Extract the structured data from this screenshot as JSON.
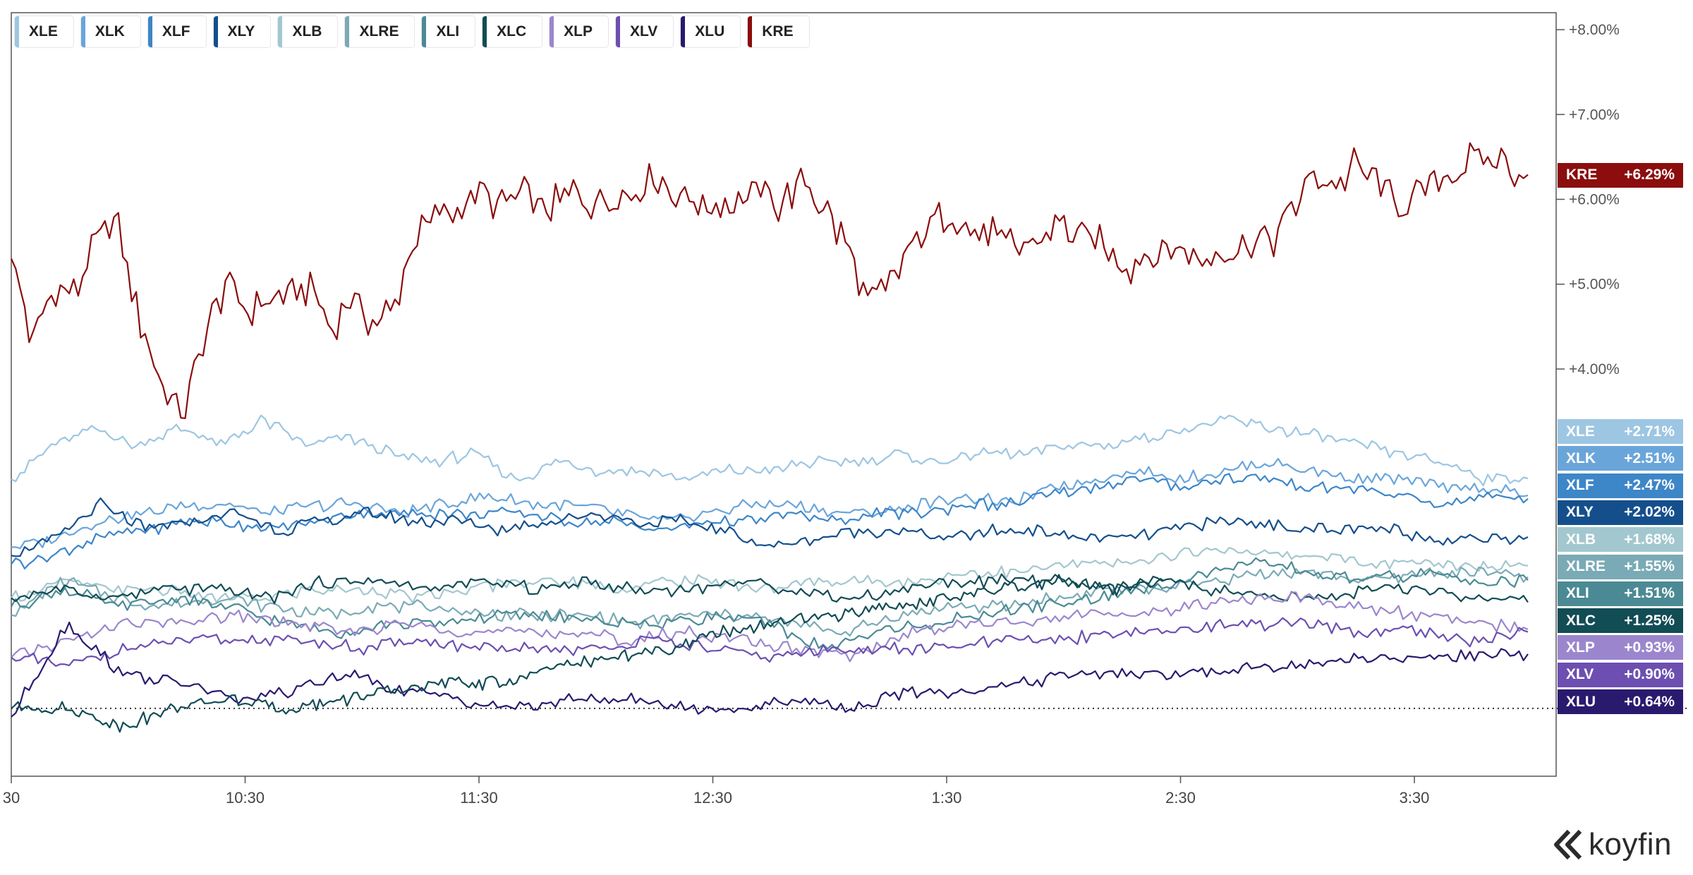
{
  "legend": [
    {
      "name": "XLE",
      "color": "#9dc6e3"
    },
    {
      "name": "XLK",
      "color": "#6aa5da"
    },
    {
      "name": "XLF",
      "color": "#3d86c8"
    },
    {
      "name": "XLY",
      "color": "#144f8c"
    },
    {
      "name": "XLB",
      "color": "#a3c7cf"
    },
    {
      "name": "XLRE",
      "color": "#7aaab5"
    },
    {
      "name": "XLI",
      "color": "#4b8a94"
    },
    {
      "name": "XLC",
      "color": "#124c55"
    },
    {
      "name": "XLP",
      "color": "#9b86ce"
    },
    {
      "name": "XLV",
      "color": "#6c4fb0"
    },
    {
      "name": "XLU",
      "color": "#2a1a6e"
    },
    {
      "name": "KRE",
      "color": "#8b0d0d"
    }
  ],
  "chart_data": {
    "type": "line",
    "x_ticks": [
      "30",
      "10:30",
      "11:30",
      "12:30",
      "1:30",
      "2:30",
      "3:30"
    ],
    "y_ticks": [
      "+8.00%",
      "+7.00%",
      "+6.00%",
      "+5.00%",
      "+4.00%"
    ],
    "ylim": [
      -0.8,
      8.2
    ],
    "baseline": 0,
    "grid": false,
    "legend_position": "top-left",
    "series": [
      {
        "name": "KRE",
        "color": "#8b0d0d",
        "last_label": "+6.29%",
        "values": [
          5.3,
          4.3,
          5.0,
          4.9,
          5.5,
          5.7,
          4.6,
          3.8,
          3.4,
          4.3,
          5.0,
          4.7,
          4.8,
          4.9,
          5.0,
          4.4,
          4.9,
          4.5,
          4.8,
          5.6,
          5.8,
          5.9,
          6.1,
          5.9,
          6.1,
          5.8,
          6.1,
          6.0,
          6.0,
          6.1,
          6.3,
          6.1,
          6.0,
          5.9,
          6.0,
          6.1,
          5.9,
          6.2,
          5.9,
          5.5,
          4.8,
          4.9,
          5.4,
          5.7,
          5.8,
          5.6,
          5.6,
          5.4,
          5.5,
          5.7,
          5.6,
          5.5,
          5.2,
          5.3,
          5.4,
          5.4,
          5.3,
          5.4,
          5.5,
          5.5,
          5.9,
          6.3,
          6.2,
          6.4,
          6.2,
          5.9,
          6.1,
          6.3,
          6.4,
          6.5,
          6.4,
          6.29
        ]
      },
      {
        "name": "XLE",
        "color": "#9dc6e3",
        "last_label": "+2.71%",
        "values": [
          2.7,
          3.1,
          3.3,
          3.1,
          3.3,
          3.1,
          3.4,
          3.1,
          3.2,
          3.0,
          2.9,
          3.0,
          2.7,
          2.9,
          2.8,
          2.8,
          2.7,
          2.8,
          2.8,
          2.9,
          2.9,
          3.0,
          2.9,
          3.0,
          3.0,
          3.1,
          3.1,
          3.2,
          3.3,
          3.4,
          3.3,
          3.2,
          3.1,
          3.0,
          2.9,
          2.7,
          2.71
        ]
      },
      {
        "name": "XLK",
        "color": "#6aa5da",
        "last_label": "+2.51%",
        "values": [
          1.9,
          2.0,
          2.2,
          2.3,
          2.4,
          2.4,
          2.3,
          2.4,
          2.4,
          2.3,
          2.4,
          2.5,
          2.4,
          2.4,
          2.3,
          2.2,
          2.3,
          2.4,
          2.4,
          2.3,
          2.3,
          2.4,
          2.5,
          2.4,
          2.6,
          2.7,
          2.8,
          2.7,
          2.8,
          2.9,
          2.8,
          2.7,
          2.7,
          2.6,
          2.6,
          2.51
        ]
      },
      {
        "name": "XLF",
        "color": "#3d86c8",
        "last_label": "+2.47%",
        "values": [
          1.7,
          1.8,
          2.0,
          2.1,
          2.2,
          2.2,
          2.1,
          2.2,
          2.3,
          2.3,
          2.3,
          2.3,
          2.3,
          2.2,
          2.2,
          2.1,
          2.2,
          2.2,
          2.3,
          2.2,
          2.3,
          2.3,
          2.4,
          2.4,
          2.5,
          2.6,
          2.7,
          2.6,
          2.7,
          2.7,
          2.6,
          2.6,
          2.5,
          2.4,
          2.5,
          2.47
        ]
      },
      {
        "name": "XLY",
        "color": "#144f8c",
        "last_label": "+2.02%",
        "values": [
          1.8,
          2.0,
          2.4,
          2.1,
          2.2,
          2.3,
          2.1,
          2.2,
          2.3,
          2.2,
          2.2,
          2.1,
          2.2,
          2.3,
          2.2,
          2.2,
          2.1,
          1.9,
          2.0,
          2.1,
          2.1,
          2.0,
          2.1,
          2.1,
          2.0,
          2.0,
          2.1,
          2.2,
          2.2,
          2.1,
          2.1,
          2.1,
          2.0,
          2.0,
          2.02
        ]
      },
      {
        "name": "XLB",
        "color": "#a3c7cf",
        "last_label": "+1.68%",
        "values": [
          1.3,
          1.5,
          1.4,
          1.4,
          1.3,
          1.3,
          1.4,
          1.4,
          1.3,
          1.4,
          1.5,
          1.5,
          1.4,
          1.5,
          1.5,
          1.4,
          1.5,
          1.5,
          1.5,
          1.6,
          1.6,
          1.7,
          1.7,
          1.8,
          1.9,
          1.8,
          1.8,
          1.7,
          1.7,
          1.7,
          1.68
        ]
      },
      {
        "name": "XLRE",
        "color": "#7aaab5",
        "last_label": "+1.55%",
        "values": [
          1.1,
          1.5,
          1.3,
          1.2,
          1.3,
          1.2,
          1.1,
          1.2,
          1.2,
          1.1,
          1.1,
          1.1,
          1.0,
          1.1,
          1.1,
          1.0,
          0.9,
          1.1,
          1.2,
          1.2,
          1.3,
          1.4,
          1.4,
          1.5,
          1.6,
          1.6,
          1.5,
          1.6,
          1.6,
          1.55
        ]
      },
      {
        "name": "XLI",
        "color": "#4b8a94",
        "last_label": "+1.51%",
        "values": [
          1.2,
          1.4,
          1.2,
          1.3,
          1.2,
          1.0,
          0.9,
          1.0,
          1.0,
          1.1,
          1.1,
          1.0,
          1.0,
          1.1,
          1.0,
          0.7,
          0.9,
          1.0,
          1.1,
          1.2,
          1.3,
          1.4,
          1.6,
          1.7,
          1.6,
          1.5,
          1.6,
          1.5,
          1.51
        ]
      },
      {
        "name": "XLC",
        "color": "#124c55",
        "last_label": "+1.25%",
        "values": [
          1.3,
          1.4,
          1.3,
          1.4,
          1.4,
          1.3,
          1.5,
          1.5,
          1.4,
          1.5,
          1.4,
          1.5,
          1.4,
          1.4,
          1.5,
          1.4,
          1.3,
          1.4,
          1.5,
          1.5,
          1.5,
          1.4,
          1.5,
          1.4,
          1.3,
          1.3,
          1.4,
          1.4,
          1.3,
          1.25
        ]
      },
      {
        "name": "XLP",
        "color": "#9b86ce",
        "last_label": "+0.93%",
        "values": [
          0.6,
          0.8,
          1.0,
          1.0,
          1.1,
          1.0,
          0.9,
          1.0,
          0.9,
          0.9,
          0.9,
          0.8,
          0.9,
          0.8,
          0.7,
          0.6,
          0.9,
          1.0,
          1.0,
          1.1,
          1.1,
          1.2,
          1.3,
          1.3,
          1.2,
          1.1,
          1.0,
          0.93
        ]
      },
      {
        "name": "XLV",
        "color": "#6c4fb0",
        "last_label": "+0.90%",
        "values": [
          0.6,
          0.5,
          0.7,
          0.8,
          0.8,
          0.8,
          0.7,
          0.8,
          0.7,
          0.7,
          0.7,
          0.8,
          0.7,
          0.6,
          0.7,
          0.7,
          0.7,
          0.8,
          0.8,
          0.9,
          0.9,
          1.0,
          1.0,
          0.9,
          0.9,
          0.8,
          0.9
        ]
      },
      {
        "name": "XLU",
        "color": "#2a1a6e",
        "last_label": "+0.64%",
        "values": [
          -0.1,
          1.0,
          0.4,
          0.3,
          0.1,
          0.2,
          0.4,
          0.2,
          0.1,
          0.0,
          0.1,
          0.1,
          0.0,
          0.0,
          0.1,
          0.0,
          0.2,
          0.2,
          0.3,
          0.4,
          0.4,
          0.4,
          0.5,
          0.5,
          0.6,
          0.6,
          0.6,
          0.64
        ]
      },
      {
        "name": "XLC-low",
        "color": "#124c55",
        "last_label": "",
        "values": [
          0.0,
          0.0,
          -0.2,
          0.0,
          0.1,
          0.0,
          0.1,
          0.2,
          0.3,
          0.3,
          0.5,
          0.6,
          0.7,
          0.9,
          1.0,
          1.1,
          1.2,
          1.3,
          1.4,
          1.5,
          1.4,
          1.5
        ]
      }
    ]
  },
  "brand": {
    "name": "koyfin"
  }
}
